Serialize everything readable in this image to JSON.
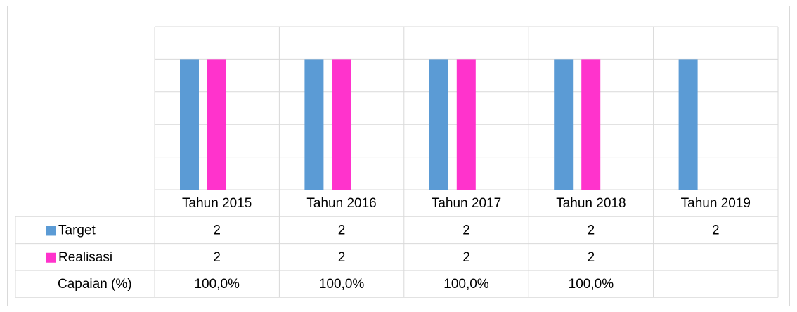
{
  "chart_data": {
    "type": "bar",
    "categories": [
      "Tahun 2015",
      "Tahun 2016",
      "Tahun 2017",
      "Tahun 2018",
      "Tahun 2019"
    ],
    "series": [
      {
        "name": "Target",
        "color": "#5b9bd5",
        "values": [
          2,
          2,
          2,
          2,
          2
        ]
      },
      {
        "name": "Realisasi",
        "color": "#ff33cc",
        "values": [
          2,
          2,
          2,
          2,
          null
        ]
      }
    ],
    "table_rows": [
      {
        "name": "Capaian (%)",
        "values": [
          100,
          100,
          100,
          100,
          null
        ],
        "value_labels": [
          "100,0%",
          "100,0%",
          "100,0%",
          "100,0%",
          null
        ]
      }
    ],
    "ylim": [
      0,
      2.5
    ],
    "yticks": [
      0,
      0.5,
      1,
      1.5,
      2,
      2.5
    ],
    "grid": true
  }
}
